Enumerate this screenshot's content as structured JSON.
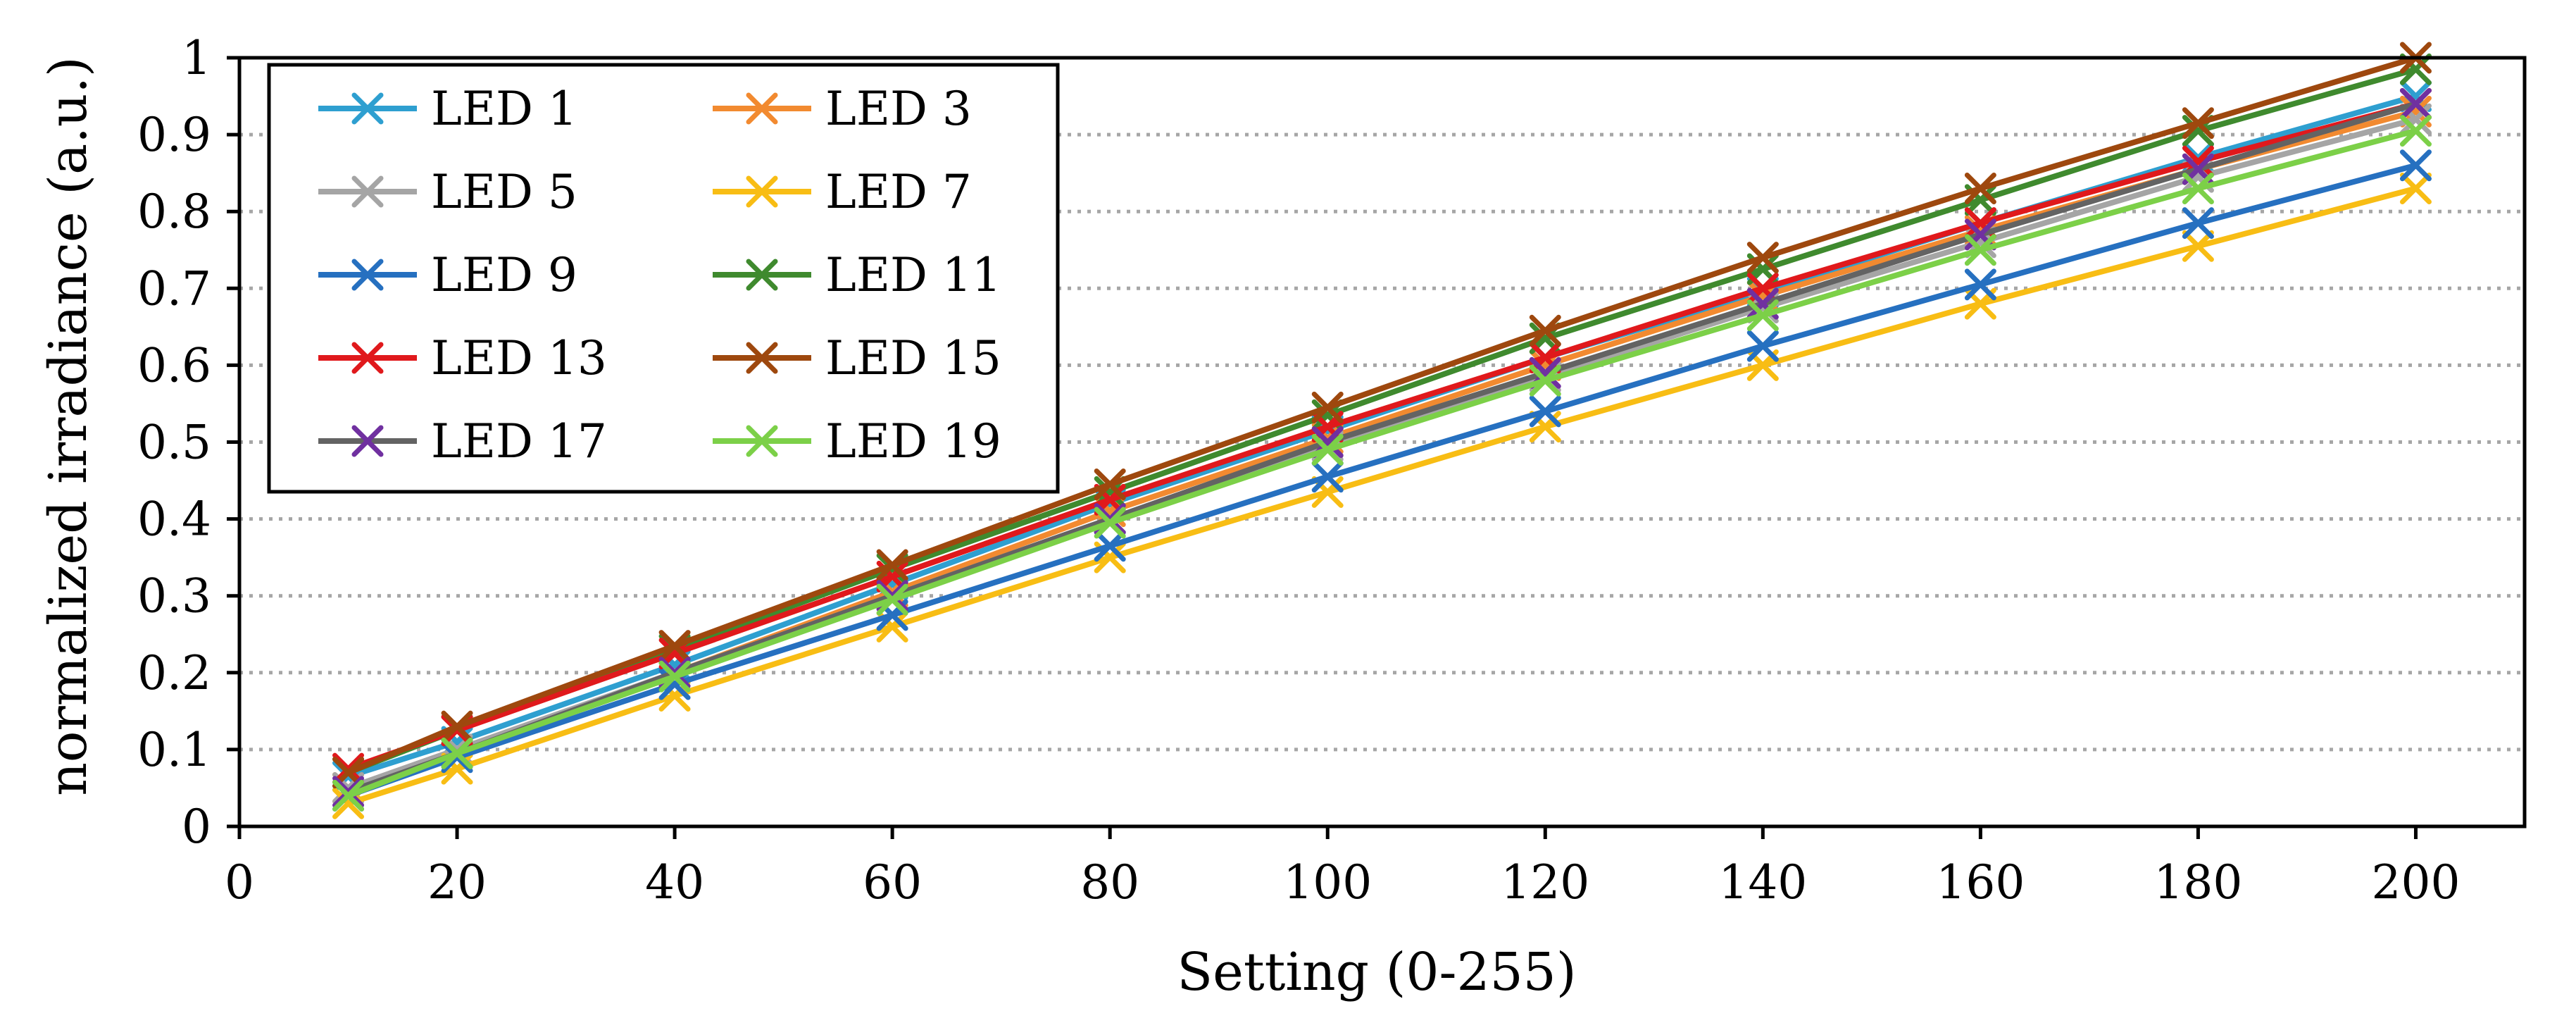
{
  "chart_data": {
    "type": "line",
    "title": "",
    "xlabel": "Setting (0-255)",
    "ylabel": "normalized irradiance (a.u.)",
    "xlim": [
      0,
      210
    ],
    "ylim": [
      0,
      1
    ],
    "xticks": [
      0,
      20,
      40,
      60,
      80,
      100,
      120,
      140,
      160,
      180,
      200
    ],
    "yticks": [
      0,
      0.1,
      0.2,
      0.3,
      0.4,
      0.5,
      0.6,
      0.7,
      0.8,
      0.9,
      1
    ],
    "ytick_labels": [
      "0",
      "0.1",
      "0.2",
      "0.3",
      "0.4",
      "0.5",
      "0.6",
      "0.7",
      "0.8",
      "0.9",
      "1"
    ],
    "grid": "horizontal-dotted",
    "legend_position": "top-left",
    "x": [
      10,
      20,
      40,
      60,
      80,
      100,
      120,
      140,
      160,
      180,
      200
    ],
    "series": [
      {
        "name": "LED 1",
        "color": "#2E9FD0",
        "values": [
          0.065,
          0.11,
          0.21,
          0.315,
          0.42,
          0.515,
          0.61,
          0.695,
          0.785,
          0.87,
          0.95
        ]
      },
      {
        "name": "LED 3",
        "color": "#F28A30",
        "values": [
          0.05,
          0.095,
          0.2,
          0.305,
          0.41,
          0.505,
          0.6,
          0.69,
          0.775,
          0.855,
          0.93
        ]
      },
      {
        "name": "LED 5",
        "color": "#A5A5A5",
        "values": [
          0.05,
          0.1,
          0.2,
          0.3,
          0.4,
          0.495,
          0.585,
          0.675,
          0.76,
          0.845,
          0.92
        ]
      },
      {
        "name": "LED 7",
        "color": "#F8BD14",
        "values": [
          0.03,
          0.075,
          0.17,
          0.26,
          0.35,
          0.435,
          0.52,
          0.6,
          0.68,
          0.755,
          0.83
        ]
      },
      {
        "name": "LED 9",
        "color": "#2670C0",
        "values": [
          0.04,
          0.09,
          0.185,
          0.275,
          0.365,
          0.455,
          0.54,
          0.625,
          0.705,
          0.785,
          0.86
        ]
      },
      {
        "name": "LED 11",
        "color": "#3F8A2E",
        "values": [
          0.07,
          0.125,
          0.23,
          0.335,
          0.435,
          0.535,
          0.635,
          0.725,
          0.815,
          0.905,
          0.985
        ]
      },
      {
        "name": "LED 13",
        "color": "#E0191C",
        "values": [
          0.075,
          0.125,
          0.225,
          0.325,
          0.425,
          0.52,
          0.61,
          0.7,
          0.785,
          0.865,
          0.94
        ]
      },
      {
        "name": "LED 15",
        "color": "#9E480E",
        "values": [
          0.07,
          0.13,
          0.235,
          0.34,
          0.445,
          0.545,
          0.645,
          0.74,
          0.83,
          0.915,
          1.0
        ]
      },
      {
        "name": "LED 17",
        "color": "#7030A0",
        "values": [
          0.045,
          0.095,
          0.2,
          0.3,
          0.4,
          0.5,
          0.59,
          0.68,
          0.77,
          0.855,
          0.94
        ]
      },
      {
        "name": "LED 19",
        "color": "#7CD048",
        "values": [
          0.04,
          0.095,
          0.195,
          0.295,
          0.395,
          0.49,
          0.58,
          0.665,
          0.75,
          0.83,
          0.905
        ]
      }
    ],
    "line_color_override": {
      "LED 17": "#636363"
    },
    "axis_color": "#000000",
    "grid_color": "#A6A6A6"
  }
}
